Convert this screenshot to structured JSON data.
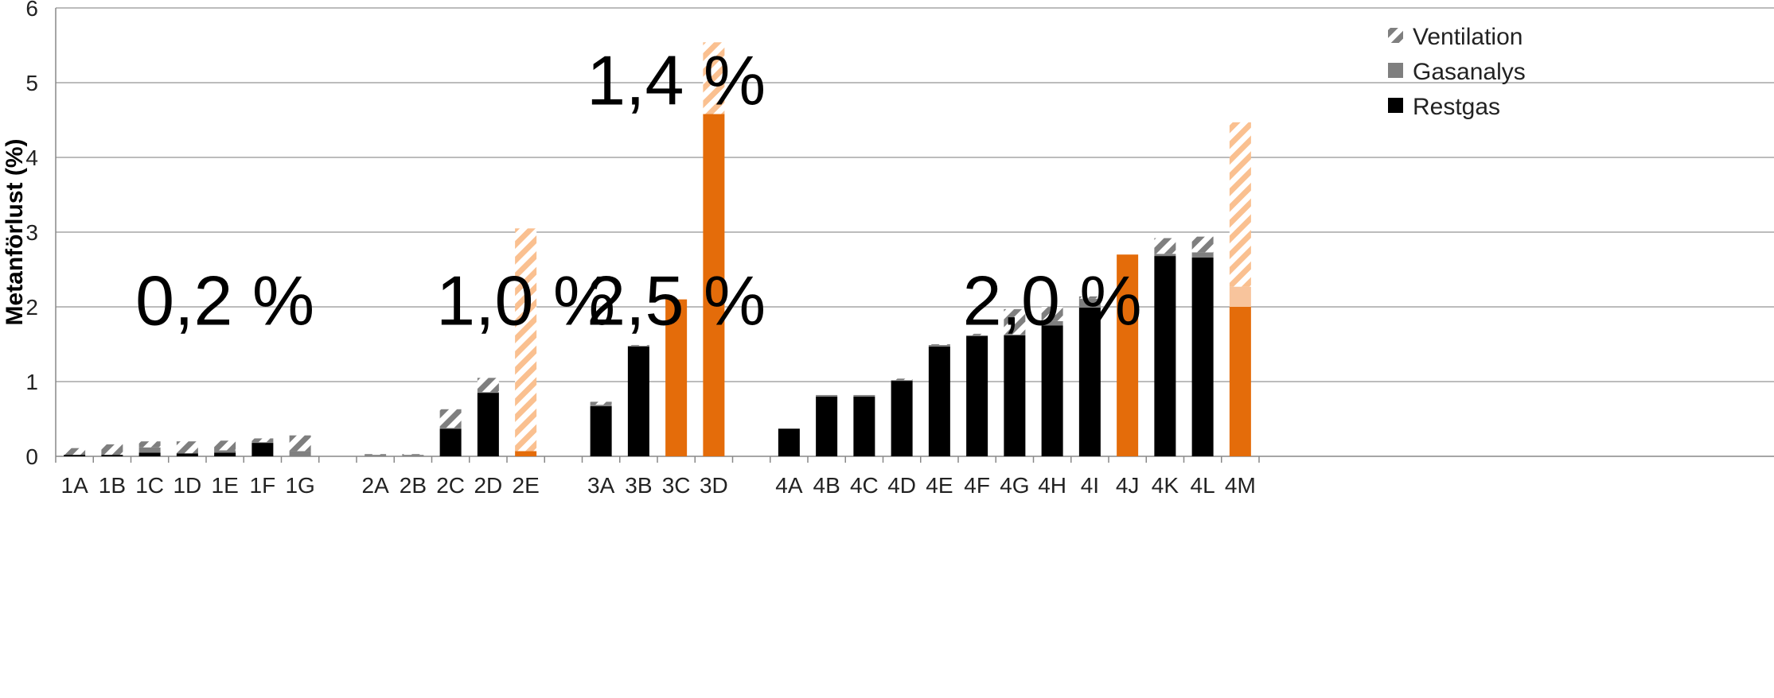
{
  "chart_data": {
    "type": "bar",
    "stacked": true,
    "ylabel": "Metanförlust (%)",
    "ylim": [
      0,
      6
    ],
    "yticks": [
      0,
      1,
      2,
      3,
      4,
      5,
      6
    ],
    "grid": true,
    "legend_position": "top-right",
    "categories": [
      "1A",
      "1B",
      "1C",
      "1D",
      "1E",
      "1F",
      "1G",
      "2A",
      "2B",
      "2C",
      "2D",
      "2E",
      "3A",
      "3B",
      "3C",
      "3D",
      "4A",
      "4B",
      "4C",
      "4D",
      "4E",
      "4F",
      "4G",
      "4H",
      "4I",
      "4J",
      "4K",
      "4L",
      "4M"
    ],
    "groups": [
      [
        "1A",
        "1B",
        "1C",
        "1D",
        "1E",
        "1F",
        "1G"
      ],
      [
        "2A",
        "2B",
        "2C",
        "2D",
        "2E"
      ],
      [
        "3A",
        "3B",
        "3C",
        "3D"
      ],
      [
        "4A",
        "4B",
        "4C",
        "4D",
        "4E",
        "4F",
        "4G",
        "4H",
        "4I",
        "4J",
        "4K",
        "4L",
        "4M"
      ]
    ],
    "series": [
      {
        "name": "Restgas",
        "color": "#000000",
        "values": [
          0.02,
          0.02,
          0.05,
          0.04,
          0.05,
          0.18,
          0.0,
          0.0,
          0.0,
          0.37,
          0.85,
          0.07,
          0.67,
          1.47,
          2.1,
          4.58,
          0.37,
          0.8,
          0.8,
          1.01,
          1.47,
          1.61,
          1.62,
          1.75,
          1.99,
          2.7,
          2.68,
          2.66,
          2.0
        ]
      },
      {
        "name": "Gasanalys",
        "color": "#7f7f7f",
        "values": [
          0.0,
          0.0,
          0.07,
          0.0,
          0.03,
          0.01,
          0.07,
          0.02,
          0.02,
          0.01,
          0.01,
          0.0,
          0.02,
          0.01,
          0.0,
          0.0,
          0.0,
          0.02,
          0.02,
          0.01,
          0.02,
          0.01,
          0.01,
          0.06,
          0.12,
          0.0,
          0.03,
          0.07,
          0.27
        ]
      },
      {
        "name": "Ventilation",
        "color": "#7f7f7f",
        "hatched": true,
        "values": [
          0.09,
          0.14,
          0.08,
          0.16,
          0.13,
          0.05,
          0.21,
          0.01,
          0.01,
          0.25,
          0.19,
          2.98,
          0.04,
          0.01,
          0.0,
          0.96,
          0.0,
          0.0,
          0.0,
          0.02,
          0.01,
          0.02,
          0.34,
          0.19,
          0.03,
          0.0,
          0.21,
          0.21,
          2.2
        ]
      }
    ],
    "highlight": {
      "categories": [
        "2E",
        "3C",
        "3D",
        "4J",
        "4M"
      ],
      "solid_color": "#e46c0a",
      "light_color": "#f8c49c",
      "hatch_color": "#fac090"
    },
    "legend": [
      {
        "label": "Ventilation",
        "icon": "hatched-square-icon"
      },
      {
        "label": "Gasanalys",
        "icon": "gray-square-icon"
      },
      {
        "label": "Restgas",
        "icon": "black-square-icon"
      }
    ],
    "annotations": [
      {
        "text": "0,2 %",
        "x_category": "1E"
      },
      {
        "text": "1,0 %",
        "x_category": "2E"
      },
      {
        "text": "1,4 %",
        "x_category": "3C",
        "y": 5.05
      },
      {
        "text": "2,5 %",
        "x_category": "3C"
      },
      {
        "text": "2,0 %",
        "x_category": "4H"
      }
    ]
  }
}
